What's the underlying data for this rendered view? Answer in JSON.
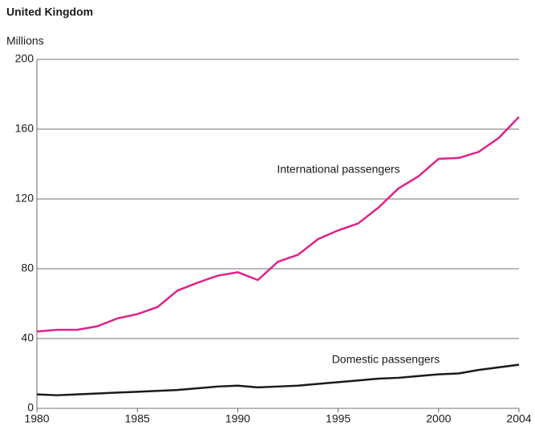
{
  "chart_data": {
    "type": "line",
    "title": "United Kingdom",
    "y_label": "Millions",
    "x": [
      1980,
      1981,
      1982,
      1983,
      1984,
      1985,
      1986,
      1987,
      1988,
      1989,
      1990,
      1991,
      1992,
      1993,
      1994,
      1995,
      1996,
      1997,
      1998,
      1999,
      2000,
      2001,
      2002,
      2003,
      2004
    ],
    "series": [
      {
        "name": "International passengers",
        "color": "#e0218a",
        "values": [
          44,
          45,
          45,
          47,
          51.5,
          54,
          58,
          67.5,
          72,
          76,
          78,
          73.5,
          84,
          88,
          97,
          102,
          106,
          115,
          126,
          133,
          143,
          143.5,
          147,
          155,
          167
        ]
      },
      {
        "name": "Domestic passengers",
        "color": "#1a1a1a",
        "values": [
          8,
          7.5,
          8,
          8.5,
          9,
          9.5,
          10,
          10.5,
          11.5,
          12.5,
          13,
          12,
          12.5,
          13,
          14,
          15,
          16,
          17,
          17.5,
          18.5,
          19.5,
          20,
          22,
          23.5,
          25
        ]
      }
    ],
    "xlim": [
      1980,
      2004
    ],
    "xticks": [
      1980,
      1985,
      1990,
      1995,
      2000,
      2004
    ],
    "ylim": [
      0,
      200
    ],
    "yticks": [
      0,
      40,
      80,
      120,
      160,
      200
    ],
    "grid": true
  }
}
